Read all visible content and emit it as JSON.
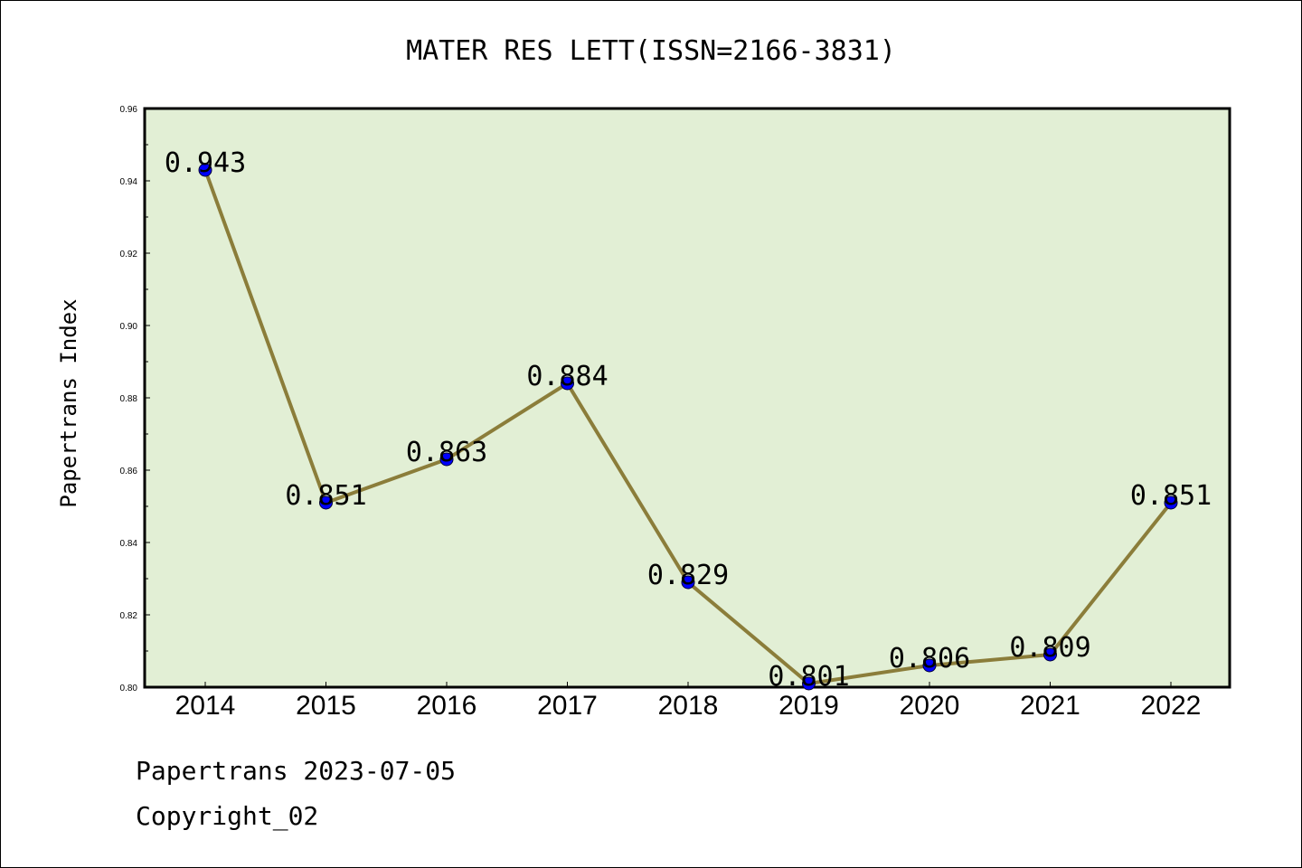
{
  "chart_data": {
    "type": "line",
    "title": "MATER RES LETT(ISSN=2166-3831)",
    "xlabel": "",
    "ylabel": "Papertrans Index",
    "categories": [
      "2014",
      "2015",
      "2016",
      "2017",
      "2018",
      "2019",
      "2020",
      "2021",
      "2022"
    ],
    "values": [
      0.943,
      0.851,
      0.863,
      0.884,
      0.829,
      0.801,
      0.806,
      0.809,
      0.851
    ],
    "data_labels": [
      "0.943",
      "0.851",
      "0.863",
      "0.884",
      "0.829",
      "0.801",
      "0.806",
      "0.809",
      "0.851"
    ],
    "ylim": [
      0.8,
      0.96
    ],
    "yticks": [
      0.8,
      0.82,
      0.84,
      0.86,
      0.88,
      0.9,
      0.92,
      0.94,
      0.96
    ],
    "ytick_labels": [
      "0.80",
      "0.82",
      "0.84",
      "0.86",
      "0.88",
      "0.90",
      "0.92",
      "0.94",
      "0.96"
    ],
    "grid": false,
    "legend": "none",
    "colors": {
      "plot_background": "#e2efd5",
      "line": "#8b7d3a",
      "marker": "#0000ff",
      "axes": "#000000"
    }
  },
  "footer": {
    "date_text": "Papertrans 2023-07-05",
    "copyright_text": "Copyright_02"
  }
}
